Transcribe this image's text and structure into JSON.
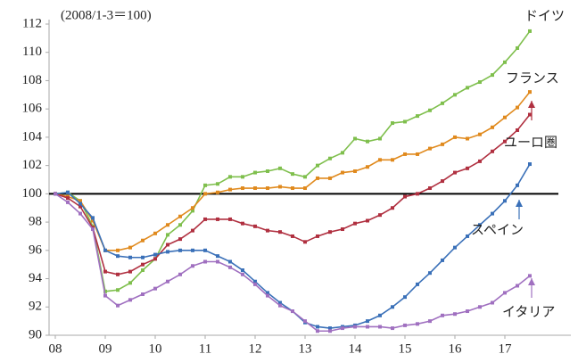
{
  "chart_data": {
    "type": "line",
    "subtitle": "(2008/1-3＝100)",
    "categories": [
      "08",
      null,
      null,
      null,
      "09",
      null,
      null,
      null,
      "10",
      null,
      null,
      null,
      "11",
      null,
      null,
      null,
      "12",
      null,
      null,
      null,
      "13",
      null,
      null,
      null,
      "14",
      null,
      null,
      null,
      "15",
      null,
      null,
      null,
      "16",
      null,
      null,
      null,
      "17",
      null,
      null
    ],
    "ylim": [
      90,
      112
    ],
    "yticks": [
      90,
      92,
      94,
      96,
      98,
      100,
      102,
      104,
      106,
      108,
      110,
      112
    ],
    "grid": false,
    "reference_line": 100,
    "series": [
      {
        "name": "ドイツ",
        "color": "#7fbf4d",
        "values": [
          100,
          100.1,
          99.5,
          97.7,
          93.1,
          93.2,
          93.7,
          94.6,
          95.4,
          97.1,
          97.8,
          98.8,
          100.6,
          100.7,
          101.2,
          101.2,
          101.5,
          101.6,
          101.8,
          101.4,
          101.2,
          102.0,
          102.5,
          102.9,
          103.9,
          103.7,
          103.9,
          105.0,
          105.1,
          105.5,
          105.9,
          106.4,
          107.0,
          107.5,
          107.9,
          108.4,
          109.3,
          110.3,
          111.5
        ]
      },
      {
        "name": "フランス",
        "color": "#e08a1e",
        "values": [
          100,
          99.8,
          99.5,
          98.1,
          96.0,
          96.0,
          96.2,
          96.7,
          97.2,
          97.8,
          98.4,
          99.0,
          100.0,
          100.1,
          100.3,
          100.4,
          100.4,
          100.4,
          100.5,
          100.4,
          100.4,
          101.1,
          101.1,
          101.5,
          101.6,
          101.9,
          102.4,
          102.4,
          102.8,
          102.8,
          103.2,
          103.5,
          104.0,
          103.9,
          104.2,
          104.7,
          105.4,
          106.1,
          107.2
        ]
      },
      {
        "name": "ユーロ圏",
        "color": "#b03040",
        "values": [
          100,
          99.7,
          99.1,
          97.6,
          94.5,
          94.3,
          94.5,
          95.0,
          95.4,
          96.4,
          96.8,
          97.4,
          98.2,
          98.2,
          98.2,
          97.9,
          97.7,
          97.4,
          97.3,
          97.0,
          96.6,
          97.0,
          97.3,
          97.5,
          97.9,
          98.1,
          98.5,
          99.0,
          99.8,
          100.0,
          100.4,
          100.9,
          101.5,
          101.8,
          102.3,
          103.0,
          103.7,
          104.5,
          105.6
        ]
      },
      {
        "name": "スペイン",
        "color": "#3a70b8",
        "values": [
          100,
          100.1,
          99.3,
          98.3,
          96.0,
          95.6,
          95.5,
          95.5,
          95.7,
          95.9,
          96.0,
          96.0,
          96.0,
          95.6,
          95.2,
          94.6,
          93.8,
          93.0,
          92.3,
          91.7,
          90.9,
          90.6,
          90.5,
          90.6,
          90.7,
          91.0,
          91.4,
          92.0,
          92.7,
          93.6,
          94.4,
          95.3,
          96.2,
          97.0,
          97.8,
          98.6,
          99.5,
          100.6,
          102.1
        ]
      },
      {
        "name": "イタリア",
        "color": "#a070c0",
        "values": [
          100,
          99.4,
          98.6,
          97.5,
          92.8,
          92.1,
          92.5,
          92.9,
          93.3,
          93.8,
          94.3,
          94.9,
          95.2,
          95.2,
          94.8,
          94.3,
          93.6,
          92.8,
          92.1,
          91.7,
          91.0,
          90.3,
          90.3,
          90.5,
          90.6,
          90.6,
          90.6,
          90.5,
          90.7,
          90.8,
          91.0,
          91.4,
          91.5,
          91.7,
          92.0,
          92.3,
          93.0,
          93.5,
          94.2
        ]
      }
    ]
  }
}
